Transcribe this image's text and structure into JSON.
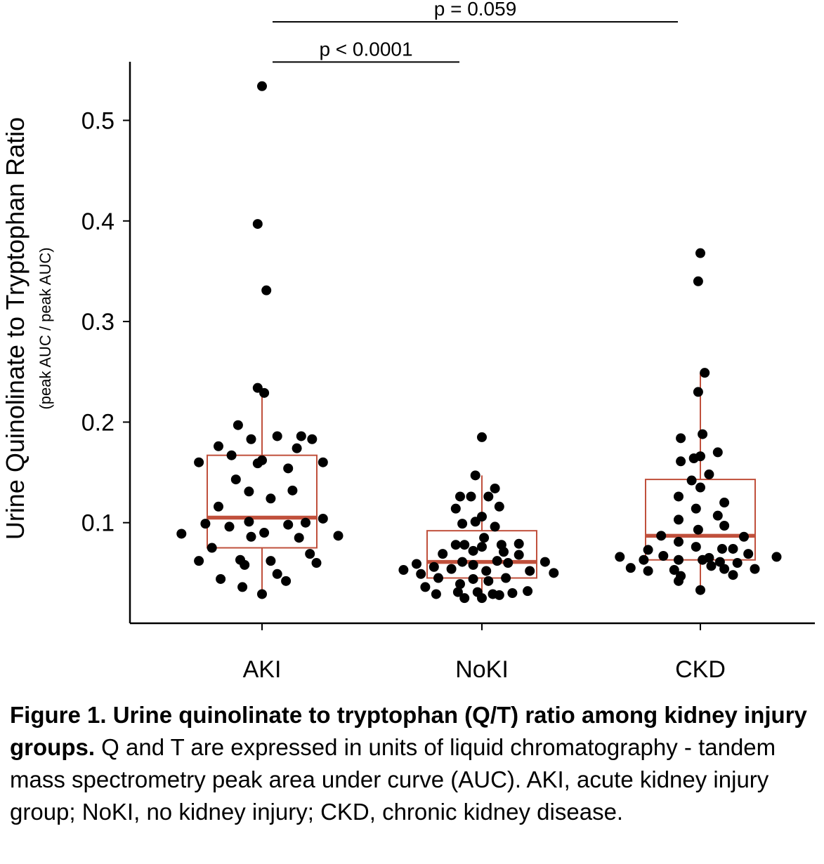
{
  "chart_data": {
    "type": "box-strip",
    "ylabel": "Urine Quinolinate to Tryptophan Ratio",
    "ylabel_sub": "(peak AUC / peak AUC)",
    "ylim": [
      0.0,
      0.56
    ],
    "yticks": [
      0.1,
      0.2,
      0.3,
      0.4,
      0.5
    ],
    "ytick_labels": [
      "0.1",
      "0.2",
      "0.3",
      "0.4",
      "0.5"
    ],
    "categories": [
      "AKI",
      "NoKI",
      "CKD"
    ],
    "colors": {
      "box": "#c0503c",
      "points": "#000000",
      "axis": "#000000"
    },
    "boxes": [
      {
        "group": "AKI",
        "whisker_low": 0.029,
        "q1": 0.075,
        "median": 0.105,
        "q3": 0.167,
        "whisker_high": 0.23
      },
      {
        "group": "NoKI",
        "whisker_low": 0.025,
        "q1": 0.045,
        "median": 0.061,
        "q3": 0.092,
        "whisker_high": 0.147
      },
      {
        "group": "CKD",
        "whisker_low": 0.033,
        "q1": 0.063,
        "median": 0.087,
        "q3": 0.143,
        "whisker_high": 0.249
      }
    ],
    "points": {
      "AKI": [
        [
          0.0,
          0.534
        ],
        [
          -0.02,
          0.397
        ],
        [
          0.02,
          0.331
        ],
        [
          -0.02,
          0.234
        ],
        [
          0.01,
          0.229
        ],
        [
          -0.11,
          0.197
        ],
        [
          -0.2,
          0.176
        ],
        [
          0.07,
          0.186
        ],
        [
          0.18,
          0.186
        ],
        [
          -0.14,
          0.167
        ],
        [
          -0.05,
          0.183
        ],
        [
          0.23,
          0.183
        ],
        [
          -0.29,
          0.16
        ],
        [
          -0.02,
          0.159
        ],
        [
          0.0,
          0.162
        ],
        [
          0.16,
          0.174
        ],
        [
          0.28,
          0.16
        ],
        [
          0.12,
          0.154
        ],
        [
          -0.12,
          0.143
        ],
        [
          -0.06,
          0.131
        ],
        [
          0.04,
          0.124
        ],
        [
          0.14,
          0.132
        ],
        [
          -0.2,
          0.116
        ],
        [
          -0.26,
          0.099
        ],
        [
          -0.06,
          0.101
        ],
        [
          -0.15,
          0.096
        ],
        [
          -0.05,
          0.086
        ],
        [
          0.01,
          0.09
        ],
        [
          0.12,
          0.098
        ],
        [
          0.2,
          0.1
        ],
        [
          0.28,
          0.104
        ],
        [
          0.17,
          0.085
        ],
        [
          -0.37,
          0.089
        ],
        [
          0.35,
          0.087
        ],
        [
          -0.23,
          0.075
        ],
        [
          0.22,
          0.069
        ],
        [
          -0.29,
          0.062
        ],
        [
          -0.1,
          0.063
        ],
        [
          0.04,
          0.062
        ],
        [
          -0.08,
          0.058
        ],
        [
          0.25,
          0.06
        ],
        [
          -0.19,
          0.044
        ],
        [
          -0.09,
          0.036
        ],
        [
          0.07,
          0.049
        ],
        [
          0.11,
          0.042
        ],
        [
          0.0,
          0.029
        ]
      ],
      "NoKI": [
        [
          0.0,
          0.185
        ],
        [
          -0.03,
          0.147
        ],
        [
          -0.1,
          0.126
        ],
        [
          -0.05,
          0.126
        ],
        [
          0.03,
          0.126
        ],
        [
          0.06,
          0.134
        ],
        [
          0.08,
          0.116
        ],
        [
          -0.12,
          0.114
        ],
        [
          0.0,
          0.106
        ],
        [
          -0.09,
          0.099
        ],
        [
          -0.03,
          0.101
        ],
        [
          0.06,
          0.096
        ],
        [
          -0.12,
          0.078
        ],
        [
          -0.08,
          0.078
        ],
        [
          0.01,
          0.085
        ],
        [
          0.0,
          0.076
        ],
        [
          -0.04,
          0.072
        ],
        [
          0.09,
          0.078
        ],
        [
          0.17,
          0.079
        ],
        [
          -0.18,
          0.069
        ],
        [
          0.1,
          0.071
        ],
        [
          0.17,
          0.068
        ],
        [
          -0.36,
          0.053
        ],
        [
          -0.3,
          0.059
        ],
        [
          -0.22,
          0.056
        ],
        [
          -0.14,
          0.054
        ],
        [
          -0.09,
          0.061
        ],
        [
          -0.04,
          0.058
        ],
        [
          0.02,
          0.052
        ],
        [
          0.07,
          0.062
        ],
        [
          0.12,
          0.06
        ],
        [
          0.22,
          0.052
        ],
        [
          0.29,
          0.061
        ],
        [
          0.33,
          0.05
        ],
        [
          -0.28,
          0.049
        ],
        [
          -0.2,
          0.045
        ],
        [
          -0.1,
          0.039
        ],
        [
          -0.04,
          0.044
        ],
        [
          0.03,
          0.042
        ],
        [
          0.11,
          0.045
        ],
        [
          -0.26,
          0.036
        ],
        [
          -0.21,
          0.029
        ],
        [
          -0.11,
          0.031
        ],
        [
          -0.08,
          0.025
        ],
        [
          -0.02,
          0.031
        ],
        [
          0.0,
          0.025
        ],
        [
          0.05,
          0.029
        ],
        [
          0.08,
          0.028
        ],
        [
          0.14,
          0.03
        ],
        [
          0.21,
          0.032
        ]
      ],
      "CKD": [
        [
          0.0,
          0.368
        ],
        [
          -0.01,
          0.34
        ],
        [
          0.02,
          0.249
        ],
        [
          -0.01,
          0.23
        ],
        [
          0.01,
          0.188
        ],
        [
          -0.09,
          0.184
        ],
        [
          -0.09,
          0.161
        ],
        [
          -0.03,
          0.164
        ],
        [
          0.0,
          0.166
        ],
        [
          0.08,
          0.17
        ],
        [
          0.04,
          0.148
        ],
        [
          -0.04,
          0.142
        ],
        [
          0.0,
          0.135
        ],
        [
          -0.1,
          0.126
        ],
        [
          0.11,
          0.12
        ],
        [
          -0.02,
          0.114
        ],
        [
          0.08,
          0.107
        ],
        [
          -0.1,
          0.103
        ],
        [
          0.11,
          0.097
        ],
        [
          -0.01,
          0.093
        ],
        [
          0.2,
          0.086
        ],
        [
          -0.18,
          0.087
        ],
        [
          -0.1,
          0.081
        ],
        [
          0.15,
          0.074
        ],
        [
          -0.02,
          0.076
        ],
        [
          0.1,
          0.074
        ],
        [
          -0.24,
          0.073
        ],
        [
          -0.17,
          0.067
        ],
        [
          0.04,
          0.065
        ],
        [
          0.22,
          0.069
        ],
        [
          -0.37,
          0.066
        ],
        [
          0.35,
          0.066
        ],
        [
          -0.1,
          0.063
        ],
        [
          -0.26,
          0.063
        ],
        [
          0.01,
          0.063
        ],
        [
          0.09,
          0.061
        ],
        [
          0.17,
          0.06
        ],
        [
          -0.32,
          0.055
        ],
        [
          -0.24,
          0.052
        ],
        [
          -0.12,
          0.053
        ],
        [
          0.05,
          0.057
        ],
        [
          0.11,
          0.054
        ],
        [
          0.25,
          0.054
        ],
        [
          -0.09,
          0.047
        ],
        [
          0.15,
          0.048
        ],
        [
          -0.1,
          0.042
        ],
        [
          0.0,
          0.033
        ]
      ]
    },
    "comparisons": [
      {
        "from": "AKI",
        "to": "NoKI",
        "label": "p < 0.0001",
        "y": 0.558
      },
      {
        "from": "AKI",
        "to": "CKD",
        "label": "p = 0.059",
        "y": 0.598
      }
    ]
  },
  "caption": {
    "bold": "Figure 1. Urine quinolinate to tryptophan (Q/T) ratio among kidney injury groups.",
    "text": " Q and T are expressed in units of liquid chromatography - tandem mass spectrometry peak area under curve (AUC). AKI, acute kidney injury group; NoKI, no kidney injury; CKD, chronic kidney disease."
  }
}
